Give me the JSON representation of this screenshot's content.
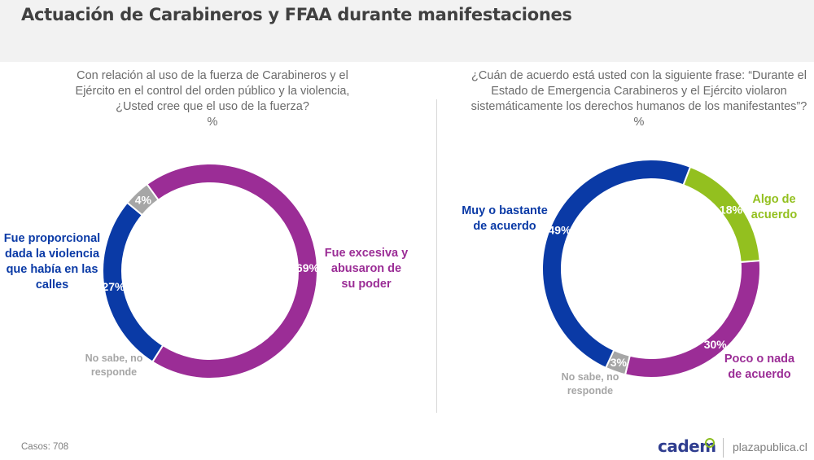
{
  "header": {
    "title": "Actuación de Carabineros y FFAA durante manifestaciones"
  },
  "footer": {
    "cases": "Casos: 708",
    "logo": "cadem",
    "site": "plazapublica.cl"
  },
  "chart_data": [
    {
      "type": "pie",
      "style": "donut",
      "title": "Con relación al uso de la fuerza de Carabineros y el Ejército en el control del orden público y la violencia, ¿Usted cree que el uso de la fuerza?",
      "unit": "%",
      "slices": [
        {
          "name": "Fue excesiva y abusaron de su poder",
          "value": 69,
          "label": "69%",
          "color": "#9b2d96"
        },
        {
          "name": "Fue proporcional dada la violencia que había en las calles",
          "value": 27,
          "label": "27%",
          "color": "#0a3aa6"
        },
        {
          "name": "No sabe, no responde",
          "value": 4,
          "label": "4%",
          "color": "#a6a6a6"
        }
      ]
    },
    {
      "type": "pie",
      "style": "donut",
      "title": "¿Cuán de acuerdo está usted con la siguiente frase: “Durante el Estado de Emergencia Carabineros y el Ejército violaron sistemáticamente los derechos humanos de los manifestantes”?",
      "unit": "%",
      "slices": [
        {
          "name": "Algo de acuerdo",
          "value": 18,
          "label": "18%",
          "color": "#93c01f"
        },
        {
          "name": "Poco o nada de acuerdo",
          "value": 30,
          "label": "30%",
          "color": "#9b2d96"
        },
        {
          "name": "No sabe, no responde",
          "value": 3,
          "label": "3%",
          "color": "#a6a6a6"
        },
        {
          "name": "Muy o bastante de acuerdo",
          "value": 49,
          "label": "49%",
          "color": "#0a3aa6"
        }
      ]
    }
  ]
}
